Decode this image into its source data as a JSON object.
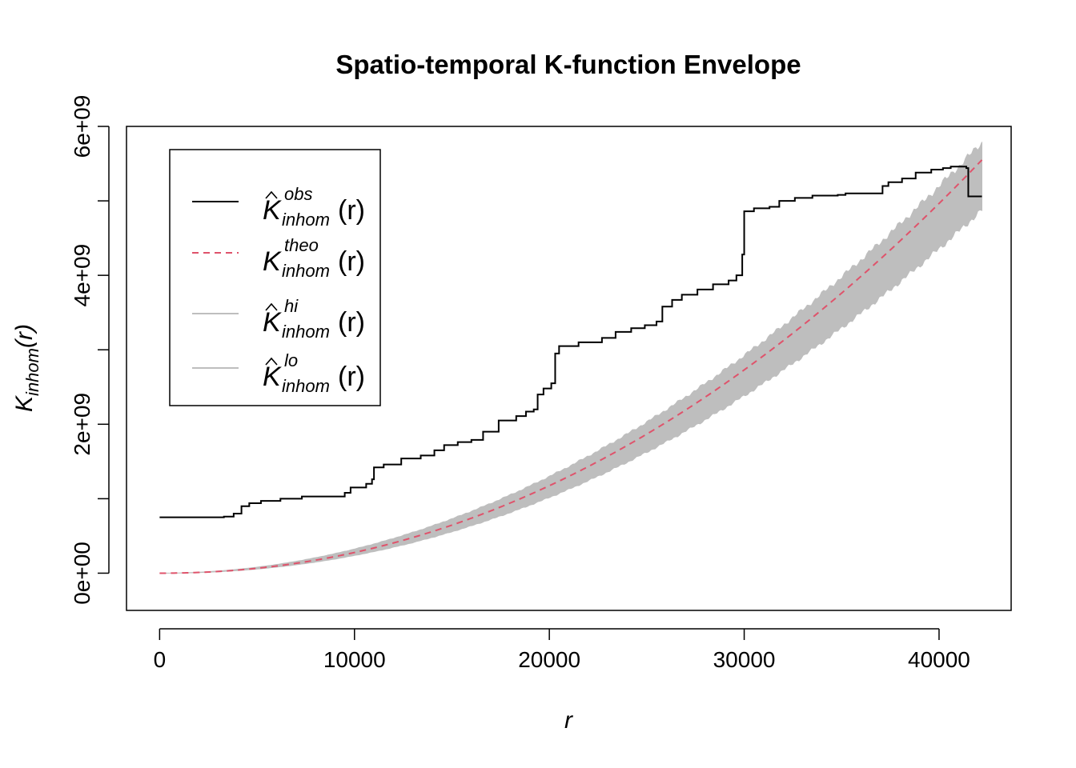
{
  "chart_data": {
    "type": "line",
    "title": "Spatio-temporal K-function Envelope",
    "xlabel": "r",
    "ylabel": {
      "base": "K",
      "sub": "inhom",
      "arg": "(r)"
    },
    "xlim": [
      -1700,
      43700
    ],
    "ylim": [
      -500000000,
      6000000000
    ],
    "xticks": [
      0,
      10000,
      20000,
      30000,
      40000
    ],
    "xtick_labels": [
      "0",
      "10000",
      "20000",
      "30000",
      "40000"
    ],
    "yticks": [
      0,
      1000000000,
      2000000000,
      3000000000,
      4000000000,
      5000000000,
      6000000000
    ],
    "ytick_labels": [
      "0e+00",
      "",
      "2e+09",
      "",
      "4e+09",
      "",
      "6e+09"
    ],
    "grid": false,
    "legend_position": "top-left",
    "x_max": 42200,
    "series": [
      {
        "key": "obs",
        "color": "#000000",
        "style": "step",
        "legend": {
          "base": "K",
          "hat": true,
          "sup": "obs",
          "sub": "inhom",
          "arg": "(r)"
        },
        "points": [
          [
            0,
            750000000
          ],
          [
            3300,
            760000000
          ],
          [
            3800,
            800000000
          ],
          [
            4200,
            900000000
          ],
          [
            4600,
            940000000
          ],
          [
            5200,
            970000000
          ],
          [
            6200,
            1000000000
          ],
          [
            7300,
            1030000000
          ],
          [
            8700,
            1030000000
          ],
          [
            9500,
            1080000000
          ],
          [
            9800,
            1150000000
          ],
          [
            10600,
            1200000000
          ],
          [
            10900,
            1260000000
          ],
          [
            11000,
            1420000000
          ],
          [
            11500,
            1460000000
          ],
          [
            12400,
            1540000000
          ],
          [
            13400,
            1580000000
          ],
          [
            14100,
            1650000000
          ],
          [
            14600,
            1720000000
          ],
          [
            15300,
            1760000000
          ],
          [
            16000,
            1790000000
          ],
          [
            16600,
            1900000000
          ],
          [
            17400,
            2050000000
          ],
          [
            18300,
            2110000000
          ],
          [
            18800,
            2170000000
          ],
          [
            19200,
            2200000000
          ],
          [
            19400,
            2400000000
          ],
          [
            19700,
            2480000000
          ],
          [
            20100,
            2550000000
          ],
          [
            20300,
            2950000000
          ],
          [
            20500,
            3050000000
          ],
          [
            21500,
            3100000000
          ],
          [
            22700,
            3160000000
          ],
          [
            23400,
            3240000000
          ],
          [
            24200,
            3290000000
          ],
          [
            24900,
            3330000000
          ],
          [
            25500,
            3380000000
          ],
          [
            25800,
            3580000000
          ],
          [
            26300,
            3670000000
          ],
          [
            26800,
            3740000000
          ],
          [
            27600,
            3810000000
          ],
          [
            28400,
            3880000000
          ],
          [
            29200,
            3930000000
          ],
          [
            29600,
            4000000000
          ],
          [
            29900,
            4280000000
          ],
          [
            30000,
            4860000000
          ],
          [
            30500,
            4900000000
          ],
          [
            31300,
            4920000000
          ],
          [
            31800,
            5000000000
          ],
          [
            32600,
            5040000000
          ],
          [
            33500,
            5070000000
          ],
          [
            34800,
            5080000000
          ],
          [
            35200,
            5100000000
          ],
          [
            37100,
            5200000000
          ],
          [
            37400,
            5250000000
          ],
          [
            38100,
            5300000000
          ],
          [
            38800,
            5380000000
          ],
          [
            39600,
            5420000000
          ],
          [
            40200,
            5440000000
          ],
          [
            40600,
            5460000000
          ],
          [
            41400,
            5440000000
          ],
          [
            41500,
            5060000000
          ],
          [
            42200,
            5060000000
          ]
        ]
      },
      {
        "key": "theo",
        "color": "#DF536B",
        "style": "dashed",
        "legend": {
          "base": "K",
          "hat": false,
          "sup": "theo",
          "sub": "inhom",
          "arg": "(r)"
        },
        "function": "power",
        "coef": 5550000000,
        "exponent": 2.08
      },
      {
        "key": "hi",
        "color": "#BEBEBE",
        "style": "band-upper",
        "legend": {
          "base": "K",
          "hat": true,
          "sup": "hi",
          "sub": "inhom",
          "arg": "(r)"
        },
        "function": "power",
        "coef": 5780000000,
        "exponent": 2.0
      },
      {
        "key": "lo",
        "color": "#BEBEBE",
        "style": "band-lower",
        "legend": {
          "base": "K",
          "hat": true,
          "sup": "lo",
          "sub": "inhom",
          "arg": "(r)"
        },
        "function": "power",
        "coef": 4880000000,
        "exponent": 2.1
      }
    ]
  }
}
